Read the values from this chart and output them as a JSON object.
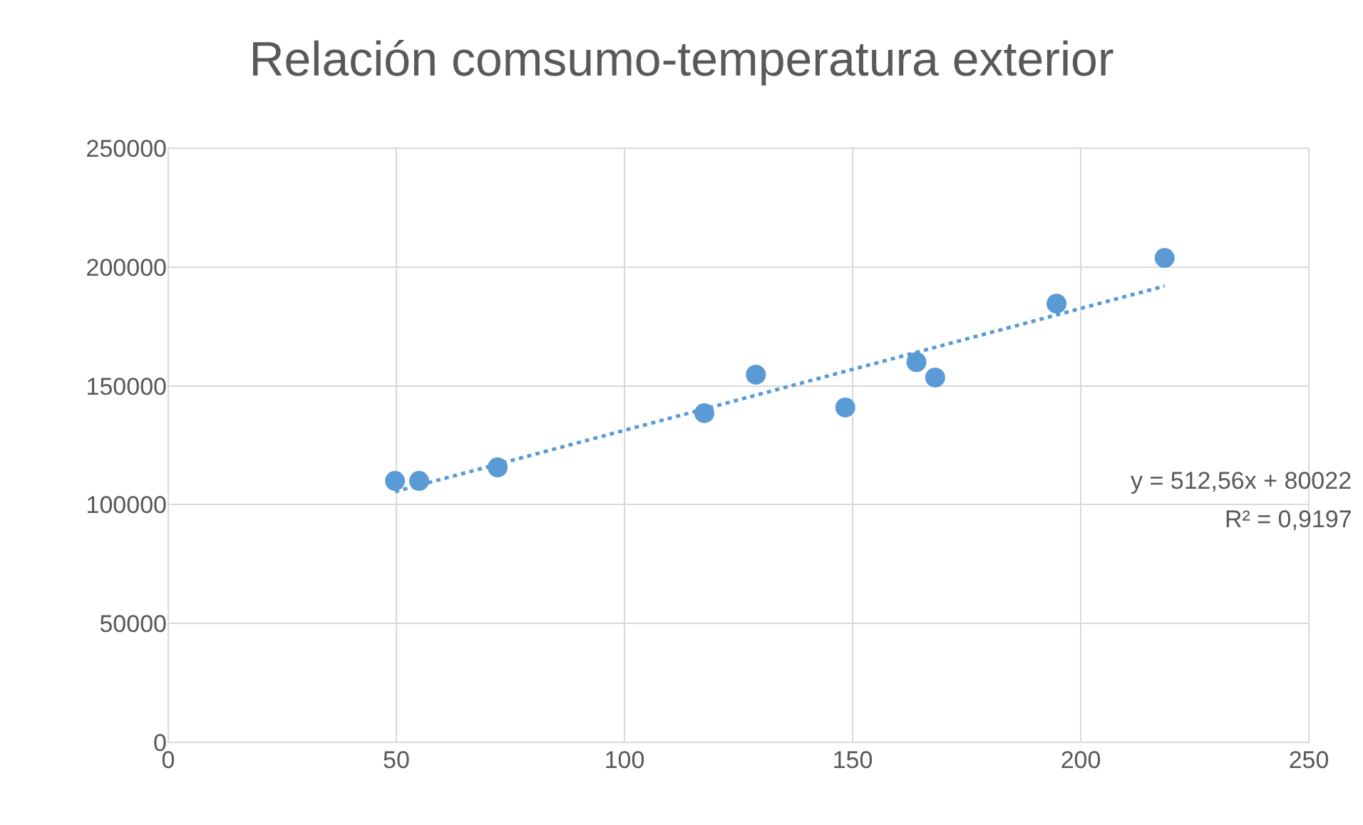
{
  "chart_data": {
    "type": "scatter",
    "title": "Relación comsumo-temperatura exterior",
    "series": [
      {
        "color": "#5b9bd5",
        "marker": "circle",
        "x": [
          49.7,
          55,
          72.2,
          117.5,
          128.8,
          148.4,
          164,
          168.1,
          194.7,
          218.4
        ],
        "values": [
          110000,
          110000,
          115700,
          138500,
          154700,
          140900,
          160000,
          153500,
          184600,
          203800
        ]
      },
      {
        "type": "line",
        "color": "#5b9bd5",
        "line_style": "dotted",
        "x": [
          49.7,
          218.4
        ],
        "values": [
          105500,
          192000
        ]
      }
    ],
    "xlim": [
      0,
      250
    ],
    "xticks": [
      0,
      50,
      100,
      150,
      200,
      250
    ],
    "ylim": [
      0,
      250000
    ],
    "yticks": [
      0,
      50000,
      100000,
      150000,
      200000,
      250000
    ],
    "grid": true,
    "legend": false,
    "annotations": [
      "y = 512,56x + 80022",
      "R² = 0,9197"
    ]
  }
}
